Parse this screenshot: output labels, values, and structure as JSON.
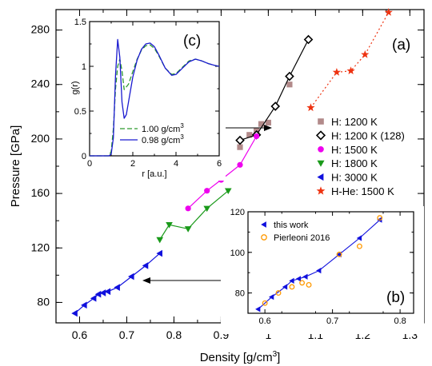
{
  "chart_data": [
    {
      "panel": "(a)",
      "type": "line",
      "xlabel": "Density [g/cm",
      "xlabel_sup": "3",
      "xlabel_end": "]",
      "ylabel": "Pressure [GPa]",
      "xlim": [
        0.55,
        1.33
      ],
      "ylim": [
        65,
        295
      ],
      "xticks": [
        0.6,
        0.7,
        0.8,
        0.9,
        1.0,
        1.1,
        1.2,
        1.3
      ],
      "xtick_labels": [
        "0.6",
        "0.7",
        "0.8",
        "0.9",
        "1",
        "1.1",
        "1.2",
        "1.3"
      ],
      "yticks": [
        80,
        120,
        160,
        200,
        240,
        280
      ],
      "ytick_labels": [
        "80",
        "120",
        "160",
        "200",
        "240",
        "280"
      ],
      "legend_position": "right",
      "series": [
        {
          "name": "H: 1200 K",
          "color": "#b28a8a",
          "marker": "square",
          "line": "none",
          "x": [
            0.94,
            0.96,
            0.975,
            0.985,
            1.0,
            1.045
          ],
          "y": [
            194,
            203,
            206,
            211,
            212,
            240
          ]
        },
        {
          "name": "H: 1200 K (128)",
          "color": "#000000",
          "marker": "diamond",
          "line": "solid",
          "x": [
            0.94,
            0.975,
            1.015,
            1.045,
            1.085
          ],
          "y": [
            199,
            203,
            224,
            246,
            273
          ]
        },
        {
          "name": "H: 1500 K",
          "color": "#ee00ee",
          "marker": "circle",
          "line": "solid",
          "x": [
            0.83,
            0.87,
            0.9,
            0.94,
            0.975
          ],
          "y": [
            149,
            162,
            170,
            181,
            202
          ]
        },
        {
          "name": "H: 1800 K",
          "color": "#1a9a1a",
          "marker": "triangle-down",
          "line": "solid",
          "x": [
            0.77,
            0.79,
            0.83,
            0.87,
            0.915
          ],
          "y": [
            126,
            137,
            134,
            149,
            162
          ]
        },
        {
          "name": "H: 3000 K",
          "color": "#1010dd",
          "marker": "triangle-left",
          "line": "solid",
          "x": [
            0.59,
            0.61,
            0.63,
            0.64,
            0.65,
            0.66,
            0.68,
            0.71,
            0.74,
            0.77
          ],
          "y": [
            72,
            78,
            83,
            86,
            87,
            88,
            91,
            99,
            107,
            116
          ]
        },
        {
          "name": "H-He: 1500 K",
          "color": "#ee3311",
          "marker": "star",
          "line": "dotted",
          "x": [
            1.09,
            1.145,
            1.175,
            1.205,
            1.255
          ],
          "y": [
            223,
            249,
            250,
            262,
            293
          ]
        }
      ],
      "annotations": [
        "(a)"
      ]
    },
    {
      "panel": "(b)",
      "type": "line",
      "xlim": [
        0.575,
        0.82
      ],
      "ylim": [
        70,
        120
      ],
      "xticks": [
        0.6,
        0.7,
        0.8
      ],
      "xtick_labels": [
        "0.6",
        "0.7",
        "0.8"
      ],
      "yticks": [
        80,
        100,
        120
      ],
      "ytick_labels": [
        "80",
        "100",
        "120"
      ],
      "legend_position": "top-left",
      "series": [
        {
          "name": "this work",
          "color": "#1010dd",
          "marker": "triangle-left",
          "line": "solid",
          "x": [
            0.59,
            0.61,
            0.63,
            0.64,
            0.65,
            0.66,
            0.68,
            0.71,
            0.74,
            0.77
          ],
          "y": [
            72,
            78,
            83,
            86,
            87,
            88,
            91,
            99,
            107,
            116
          ]
        },
        {
          "name": "Pierleoni 2016",
          "color": "#ff9900",
          "marker": "open-circle",
          "line": "none",
          "x": [
            0.6,
            0.62,
            0.64,
            0.655,
            0.665,
            0.71,
            0.74,
            0.77
          ],
          "y": [
            75,
            80,
            83,
            85,
            84,
            99,
            103,
            117
          ]
        }
      ],
      "annotations": [
        "(b)"
      ]
    },
    {
      "panel": "(c)",
      "type": "line",
      "xlabel": "r [a.u.]",
      "ylabel": "g(r)",
      "xlim": [
        0,
        6
      ],
      "ylim": [
        0,
        1.5
      ],
      "xticks": [
        0,
        2,
        4,
        6
      ],
      "xtick_labels": [
        "0",
        "2",
        "4",
        "6"
      ],
      "yticks": [
        0,
        0.5,
        1,
        1.5
      ],
      "ytick_labels": [
        "0",
        "0.5",
        "1",
        "1.5"
      ],
      "legend_position": "bottom-right",
      "series": [
        {
          "name": "1.00 g/cm",
          "name_sup": "3",
          "color": "#2e9a2e",
          "line": "dashed",
          "x": [
            0,
            0.9,
            1.0,
            1.1,
            1.2,
            1.3,
            1.4,
            1.5,
            1.6,
            1.8,
            2.0,
            2.2,
            2.4,
            2.6,
            2.8,
            3.0,
            3.2,
            3.5,
            3.8,
            4.0,
            4.3,
            4.6,
            4.9,
            5.2,
            5.5,
            5.8,
            6.0
          ],
          "y": [
            0,
            0,
            0.05,
            0.3,
            0.75,
            1.0,
            1.08,
            0.95,
            0.74,
            0.8,
            0.94,
            1.08,
            1.18,
            1.23,
            1.24,
            1.2,
            1.12,
            0.98,
            0.91,
            0.92,
            0.99,
            1.06,
            1.08,
            1.06,
            1.03,
            1.01,
            1.0
          ]
        },
        {
          "name": "0.98 g/cm",
          "name_sup": "3",
          "color": "#1a1ad0",
          "line": "solid",
          "x": [
            0,
            0.9,
            1.0,
            1.1,
            1.2,
            1.3,
            1.4,
            1.5,
            1.6,
            1.7,
            1.8,
            2.0,
            2.2,
            2.4,
            2.6,
            2.8,
            3.0,
            3.2,
            3.5,
            3.8,
            4.0,
            4.3,
            4.6,
            4.9,
            5.2,
            5.5,
            5.8,
            6.0
          ],
          "y": [
            0,
            0,
            0.02,
            0.2,
            0.9,
            1.3,
            1.1,
            0.6,
            0.42,
            0.46,
            0.6,
            0.88,
            1.07,
            1.19,
            1.25,
            1.26,
            1.22,
            1.13,
            0.98,
            0.9,
            0.91,
            0.98,
            1.05,
            1.08,
            1.06,
            1.03,
            1.01,
            1.0
          ]
        }
      ],
      "annotations": [
        "(c)"
      ]
    }
  ]
}
